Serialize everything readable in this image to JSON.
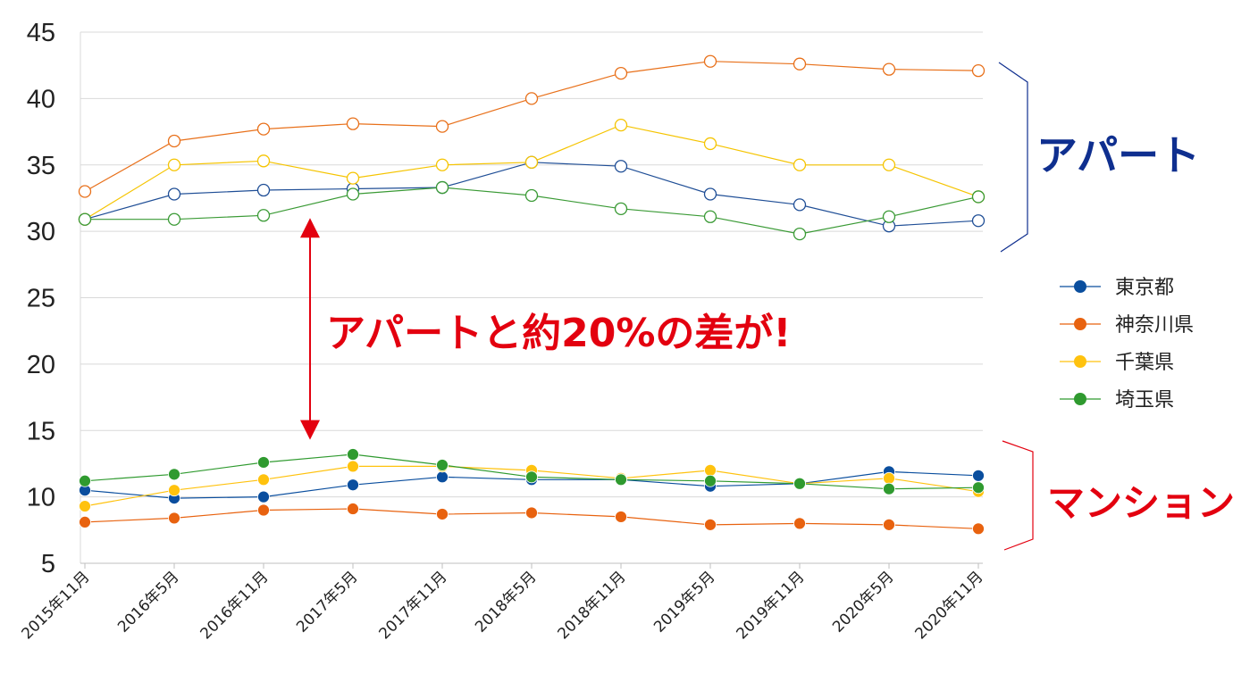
{
  "chart_data": {
    "type": "line",
    "x": [
      "2015年11月",
      "2016年5月",
      "2016年11月",
      "2017年5月",
      "2017年11月",
      "2018年5月",
      "2018年11月",
      "2019年5月",
      "2019年11月",
      "2020年5月",
      "2020年11月"
    ],
    "ylim": [
      5,
      45
    ],
    "yticks": [
      5,
      10,
      15,
      20,
      25,
      30,
      35,
      40,
      45
    ],
    "grid": true,
    "legend_position": "right",
    "legend": [
      "東京都",
      "神奈川県",
      "千葉県",
      "埼玉県"
    ],
    "groups": [
      {
        "label": "アパート",
        "marker": "hollow",
        "label_color": "#0f2f8f",
        "series": [
          {
            "name": "東京都",
            "color": "#1f4e96",
            "values": [
              30.9,
              32.8,
              33.1,
              33.2,
              33.3,
              35.2,
              34.9,
              32.8,
              32.0,
              30.4,
              30.8
            ]
          },
          {
            "name": "神奈川県",
            "color": "#e8701a",
            "values": [
              33.0,
              36.8,
              37.7,
              38.1,
              37.9,
              40.0,
              41.9,
              42.8,
              42.6,
              42.2,
              42.1
            ]
          },
          {
            "name": "千葉県",
            "color": "#f5c400",
            "values": [
              30.9,
              35.0,
              35.3,
              34.0,
              35.0,
              35.2,
              38.0,
              36.6,
              35.0,
              35.0,
              32.6
            ]
          },
          {
            "name": "埼玉県",
            "color": "#3a9a35",
            "values": [
              30.9,
              30.9,
              31.2,
              32.8,
              33.3,
              32.7,
              31.7,
              31.1,
              29.8,
              31.1,
              32.6
            ]
          }
        ]
      },
      {
        "label": "マンション",
        "marker": "filled",
        "label_color": "#e3000f",
        "series": [
          {
            "name": "東京都",
            "color": "#0a4e9e",
            "values": [
              10.5,
              9.9,
              10.0,
              10.9,
              11.5,
              11.3,
              11.3,
              10.8,
              11.0,
              11.9,
              11.6
            ]
          },
          {
            "name": "神奈川県",
            "color": "#e8620f",
            "values": [
              8.1,
              8.4,
              9.0,
              9.1,
              8.7,
              8.8,
              8.5,
              7.9,
              8.0,
              7.9,
              7.6
            ]
          },
          {
            "name": "千葉県",
            "color": "#ffc20e",
            "values": [
              9.3,
              10.5,
              11.3,
              12.3,
              12.3,
              12.0,
              11.4,
              12.0,
              11.0,
              11.4,
              10.4
            ]
          },
          {
            "name": "埼玉県",
            "color": "#2f9a2f",
            "values": [
              11.2,
              11.7,
              12.6,
              13.2,
              12.4,
              11.5,
              11.3,
              11.2,
              11.0,
              10.6,
              10.7
            ]
          }
        ]
      }
    ],
    "annotation": {
      "text": "アパートと約20%の差が!",
      "color": "#e3000f",
      "arrow_from": 31.0,
      "arrow_to": 14.3
    }
  }
}
